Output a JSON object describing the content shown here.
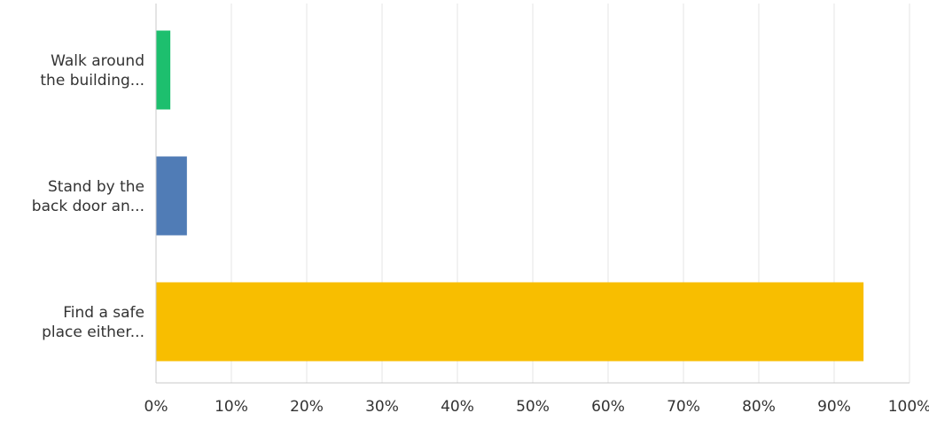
{
  "chart_data": {
    "type": "bar",
    "orientation": "horizontal",
    "categories": [
      [
        "Walk around",
        "the building..."
      ],
      [
        "Stand by the",
        "back door an..."
      ],
      [
        "Find a safe",
        "place either..."
      ]
    ],
    "values": [
      1.9,
      4.1,
      93.9
    ],
    "xlim": [
      0,
      100
    ],
    "xticks": [
      0,
      10,
      20,
      30,
      40,
      50,
      60,
      70,
      80,
      90,
      100
    ],
    "xtick_labels": [
      "0%",
      "10%",
      "20%",
      "30%",
      "40%",
      "50%",
      "60%",
      "70%",
      "80%",
      "90%",
      "100%"
    ],
    "colors": [
      "#1dbf6e",
      "#507cb6",
      "#f8be00"
    ],
    "grid": true,
    "gridline_color": "#e5e5e5",
    "axis_color": "#c8c8c8",
    "title": "",
    "xlabel": "",
    "ylabel": ""
  }
}
